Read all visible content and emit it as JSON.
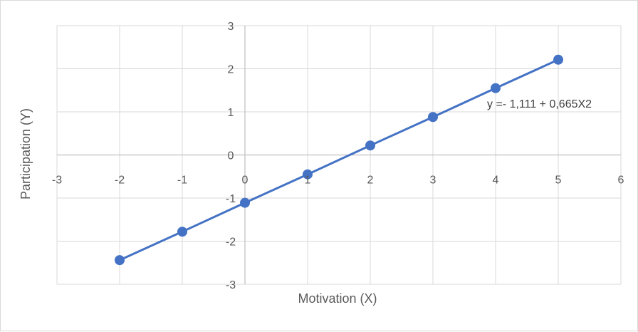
{
  "chart_data": {
    "type": "line",
    "x": [
      -2,
      -1,
      0,
      1,
      2,
      3,
      4,
      5
    ],
    "series": [
      {
        "values": [
          -2.44,
          -1.78,
          -1.11,
          -0.45,
          0.22,
          0.88,
          1.55,
          2.21
        ]
      }
    ],
    "xlabel": "Motivation (X)",
    "ylabel": "Participation (Y)",
    "xlim": [
      -3,
      6
    ],
    "ylim": [
      -3,
      3
    ],
    "xticks": [
      "-3",
      "-2",
      "-1",
      "0",
      "1",
      "2",
      "3",
      "4",
      "5",
      "6"
    ],
    "yticks": [
      "-3",
      "-2",
      "-1",
      "0",
      "1",
      "2",
      "3"
    ],
    "annotation": "y =- 1,111 + 0,665X2",
    "grid": true,
    "legend": "none",
    "line_color": "#4472c4",
    "grid_color": "#d9d9d9",
    "axis_color": "#bfbfbf"
  }
}
